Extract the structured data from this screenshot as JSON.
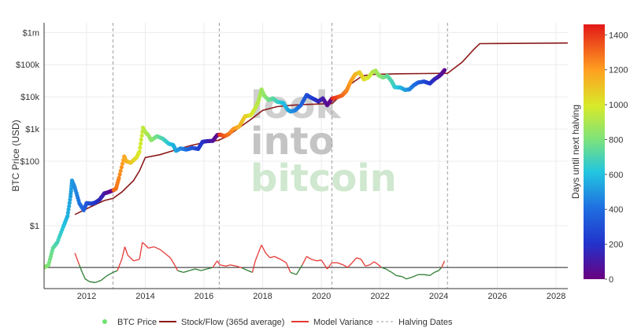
{
  "chart_data": {
    "type": "line",
    "title": "",
    "xlabel": "",
    "ylabel": "BTC Price (USD)",
    "y_scale": "log",
    "ylim": [
      0.011,
      2000000
    ],
    "xlim": [
      2010.55,
      2028.4
    ],
    "x_ticks": [
      2012,
      2014,
      2016,
      2018,
      2020,
      2022,
      2024,
      2026,
      2028
    ],
    "y_ticks": [
      {
        "value": 1,
        "label": "$1"
      },
      {
        "value": 100,
        "label": "$100"
      },
      {
        "value": 1000,
        "label": "$1k"
      },
      {
        "value": 10000,
        "label": "$10k"
      },
      {
        "value": 100000,
        "label": "$100k"
      },
      {
        "value": 1000000,
        "label": "$1m"
      }
    ],
    "halving_dates": [
      2012.9,
      2016.52,
      2020.36,
      2024.3
    ],
    "model_variance_baseline": 0.05,
    "colorbar": {
      "label": "Days until next halving",
      "min": 0,
      "max": 1460,
      "ticks": [
        0,
        200,
        400,
        600,
        800,
        1000,
        1200,
        1400
      ]
    },
    "watermark": [
      "look",
      "into",
      "bitcoin"
    ],
    "series": [
      {
        "name": "BTC Price",
        "kind": "markers",
        "points": [
          [
            2010.55,
            0.05
          ],
          [
            2010.7,
            0.06
          ],
          [
            2010.85,
            0.2
          ],
          [
            2011.0,
            0.3
          ],
          [
            2011.2,
            0.9
          ],
          [
            2011.35,
            2.0
          ],
          [
            2011.45,
            8
          ],
          [
            2011.5,
            25
          ],
          [
            2011.6,
            15
          ],
          [
            2011.75,
            5
          ],
          [
            2011.9,
            3
          ],
          [
            2012.0,
            5
          ],
          [
            2012.15,
            4.8
          ],
          [
            2012.3,
            5.2
          ],
          [
            2012.45,
            6.5
          ],
          [
            2012.6,
            10
          ],
          [
            2012.75,
            11
          ],
          [
            2012.9,
            12.5
          ],
          [
            2013.0,
            14
          ],
          [
            2013.1,
            30
          ],
          [
            2013.28,
            140
          ],
          [
            2013.35,
            100
          ],
          [
            2013.5,
            90
          ],
          [
            2013.7,
            130
          ],
          [
            2013.8,
            200
          ],
          [
            2013.92,
            1100
          ],
          [
            2014.0,
            800
          ],
          [
            2014.1,
            650
          ],
          [
            2014.2,
            450
          ],
          [
            2014.4,
            600
          ],
          [
            2014.6,
            500
          ],
          [
            2014.8,
            350
          ],
          [
            2014.95,
            320
          ],
          [
            2015.05,
            210
          ],
          [
            2015.2,
            250
          ],
          [
            2015.4,
            230
          ],
          [
            2015.6,
            260
          ],
          [
            2015.8,
            240
          ],
          [
            2015.95,
            400
          ],
          [
            2016.1,
            420
          ],
          [
            2016.3,
            430
          ],
          [
            2016.45,
            650
          ],
          [
            2016.55,
            670
          ],
          [
            2016.7,
            600
          ],
          [
            2016.85,
            700
          ],
          [
            2017.0,
            1000
          ],
          [
            2017.2,
            1200
          ],
          [
            2017.4,
            2500
          ],
          [
            2017.6,
            2700
          ],
          [
            2017.75,
            4500
          ],
          [
            2017.85,
            7000
          ],
          [
            2017.96,
            17000
          ],
          [
            2018.05,
            11000
          ],
          [
            2018.2,
            8000
          ],
          [
            2018.35,
            9000
          ],
          [
            2018.5,
            7000
          ],
          [
            2018.7,
            6500
          ],
          [
            2018.85,
            4000
          ],
          [
            2018.95,
            3500
          ],
          [
            2019.1,
            3800
          ],
          [
            2019.3,
            5500
          ],
          [
            2019.5,
            11500
          ],
          [
            2019.6,
            10000
          ],
          [
            2019.75,
            8500
          ],
          [
            2019.9,
            7200
          ],
          [
            2020.05,
            9000
          ],
          [
            2020.2,
            5500
          ],
          [
            2020.36,
            8800
          ],
          [
            2020.5,
            9500
          ],
          [
            2020.7,
            11000
          ],
          [
            2020.85,
            15000
          ],
          [
            2021.0,
            30000
          ],
          [
            2021.15,
            50000
          ],
          [
            2021.3,
            58000
          ],
          [
            2021.45,
            35000
          ],
          [
            2021.6,
            40000
          ],
          [
            2021.75,
            60000
          ],
          [
            2021.85,
            65000
          ],
          [
            2021.95,
            47000
          ],
          [
            2022.1,
            40000
          ],
          [
            2022.25,
            45000
          ],
          [
            2022.4,
            30000
          ],
          [
            2022.5,
            20000
          ],
          [
            2022.7,
            19500
          ],
          [
            2022.85,
            16500
          ],
          [
            2023.0,
            17000
          ],
          [
            2023.15,
            23000
          ],
          [
            2023.3,
            28000
          ],
          [
            2023.5,
            30000
          ],
          [
            2023.7,
            26000
          ],
          [
            2023.85,
            35000
          ],
          [
            2024.0,
            43000
          ],
          [
            2024.1,
            52000
          ],
          [
            2024.2,
            68000
          ]
        ]
      },
      {
        "name": "Stock/Flow (365d average)",
        "kind": "line",
        "color": "#8b1a1a",
        "points": [
          [
            2011.6,
            2.2
          ],
          [
            2011.9,
            3.0
          ],
          [
            2012.3,
            4.5
          ],
          [
            2012.6,
            6
          ],
          [
            2012.9,
            7
          ],
          [
            2013.2,
            11
          ],
          [
            2013.6,
            25
          ],
          [
            2013.8,
            50
          ],
          [
            2014.0,
            130
          ],
          [
            2014.5,
            160
          ],
          [
            2015.0,
            220
          ],
          [
            2015.5,
            300
          ],
          [
            2016.0,
            380
          ],
          [
            2016.5,
            450
          ],
          [
            2016.8,
            600
          ],
          [
            2017.2,
            1100
          ],
          [
            2017.6,
            2000
          ],
          [
            2018.0,
            3800
          ],
          [
            2018.5,
            5000
          ],
          [
            2019.0,
            5500
          ],
          [
            2019.5,
            5800
          ],
          [
            2020.0,
            6000
          ],
          [
            2020.36,
            6200
          ],
          [
            2020.6,
            10000
          ],
          [
            2021.0,
            25000
          ],
          [
            2021.4,
            45000
          ],
          [
            2021.8,
            50000
          ],
          [
            2022.5,
            52000
          ],
          [
            2023.5,
            53000
          ],
          [
            2024.3,
            54000
          ],
          [
            2024.8,
            120000
          ],
          [
            2025.2,
            300000
          ],
          [
            2025.4,
            450000
          ],
          [
            2026.0,
            455000
          ],
          [
            2027.0,
            460000
          ],
          [
            2028.4,
            470000
          ]
        ]
      },
      {
        "name": "Model Variance",
        "kind": "variance",
        "color_above": "#e53935",
        "color_below": "#2e7d32",
        "points": [
          [
            2011.6,
            0.14
          ],
          [
            2011.75,
            0.06
          ],
          [
            2011.85,
            0.035
          ],
          [
            2011.95,
            0.022
          ],
          [
            2012.1,
            0.018
          ],
          [
            2012.3,
            0.017
          ],
          [
            2012.5,
            0.02
          ],
          [
            2012.7,
            0.028
          ],
          [
            2012.9,
            0.035
          ],
          [
            2013.05,
            0.04
          ],
          [
            2013.2,
            0.09
          ],
          [
            2013.3,
            0.22
          ],
          [
            2013.4,
            0.12
          ],
          [
            2013.6,
            0.08
          ],
          [
            2013.8,
            0.09
          ],
          [
            2013.9,
            0.3
          ],
          [
            2014.0,
            0.25
          ],
          [
            2014.1,
            0.2
          ],
          [
            2014.3,
            0.22
          ],
          [
            2014.5,
            0.18
          ],
          [
            2014.7,
            0.13
          ],
          [
            2014.85,
            0.1
          ],
          [
            2015.0,
            0.06
          ],
          [
            2015.1,
            0.04
          ],
          [
            2015.3,
            0.035
          ],
          [
            2015.5,
            0.04
          ],
          [
            2015.7,
            0.045
          ],
          [
            2015.9,
            0.04
          ],
          [
            2016.1,
            0.045
          ],
          [
            2016.3,
            0.05
          ],
          [
            2016.45,
            0.08
          ],
          [
            2016.55,
            0.06
          ],
          [
            2016.75,
            0.055
          ],
          [
            2016.9,
            0.06
          ],
          [
            2017.1,
            0.055
          ],
          [
            2017.3,
            0.048
          ],
          [
            2017.5,
            0.04
          ],
          [
            2017.65,
            0.035
          ],
          [
            2017.75,
            0.08
          ],
          [
            2017.85,
            0.14
          ],
          [
            2017.96,
            0.25
          ],
          [
            2018.1,
            0.14
          ],
          [
            2018.25,
            0.1
          ],
          [
            2018.4,
            0.11
          ],
          [
            2018.6,
            0.09
          ],
          [
            2018.8,
            0.07
          ],
          [
            2018.95,
            0.035
          ],
          [
            2019.15,
            0.03
          ],
          [
            2019.35,
            0.06
          ],
          [
            2019.5,
            0.11
          ],
          [
            2019.65,
            0.09
          ],
          [
            2019.85,
            0.08
          ],
          [
            2020.0,
            0.085
          ],
          [
            2020.2,
            0.045
          ],
          [
            2020.36,
            0.07
          ],
          [
            2020.55,
            0.07
          ],
          [
            2020.75,
            0.06
          ],
          [
            2020.9,
            0.05
          ],
          [
            2021.05,
            0.07
          ],
          [
            2021.2,
            0.1
          ],
          [
            2021.35,
            0.09
          ],
          [
            2021.5,
            0.055
          ],
          [
            2021.65,
            0.06
          ],
          [
            2021.8,
            0.075
          ],
          [
            2021.9,
            0.065
          ],
          [
            2022.05,
            0.05
          ],
          [
            2022.2,
            0.045
          ],
          [
            2022.4,
            0.035
          ],
          [
            2022.55,
            0.028
          ],
          [
            2022.75,
            0.026
          ],
          [
            2022.9,
            0.022
          ],
          [
            2023.1,
            0.025
          ],
          [
            2023.3,
            0.03
          ],
          [
            2023.5,
            0.03
          ],
          [
            2023.7,
            0.028
          ],
          [
            2023.85,
            0.035
          ],
          [
            2024.0,
            0.04
          ],
          [
            2024.1,
            0.05
          ],
          [
            2024.2,
            0.08
          ]
        ]
      },
      {
        "name": "Halving Dates",
        "kind": "vlines",
        "color": "#9e9e9e"
      }
    ]
  }
}
